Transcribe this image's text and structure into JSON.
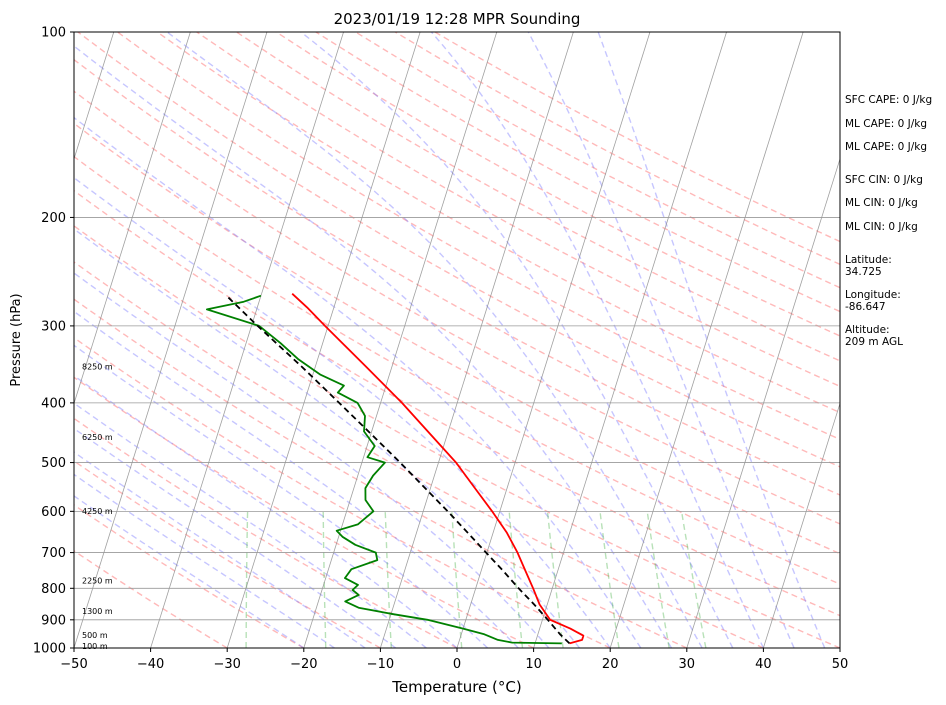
{
  "chart_data": {
    "type": "line",
    "subtype": "skew-t log-p sounding",
    "title": "2023/01/19 12:28 MPR Sounding",
    "xlabel": "Temperature (°C)",
    "ylabel": "Pressure (hPa)",
    "xlim": [
      -50,
      50
    ],
    "ylim": [
      1000,
      100
    ],
    "yscale": "log",
    "x_ticks": [
      -50,
      -40,
      -30,
      -20,
      -10,
      0,
      10,
      20,
      30,
      40,
      50
    ],
    "y_ticks": [
      100,
      200,
      300,
      400,
      500,
      600,
      700,
      800,
      900,
      1000
    ],
    "grid": "horizontal isobars on; skewed isotherms on",
    "background_lines": [
      "dry adiabats (red dashed)",
      "moist adiabats (blue dashed)",
      "mixing ratio lines (green dashed)"
    ],
    "series": [
      {
        "role": "temperature",
        "color": "#ff0000",
        "style": "solid",
        "points": [
          {
            "p": 983,
            "t": 14.5
          },
          {
            "p": 970,
            "t": 16.0
          },
          {
            "p": 955,
            "t": 16.0
          },
          {
            "p": 930,
            "t": 14.0
          },
          {
            "p": 900,
            "t": 11.0
          },
          {
            "p": 850,
            "t": 9.0
          },
          {
            "p": 800,
            "t": 7.5
          },
          {
            "p": 750,
            "t": 5.8
          },
          {
            "p": 700,
            "t": 4.0
          },
          {
            "p": 650,
            "t": 1.8
          },
          {
            "p": 600,
            "t": -1.0
          },
          {
            "p": 550,
            "t": -4.2
          },
          {
            "p": 500,
            "t": -7.7
          },
          {
            "p": 450,
            "t": -12.2
          },
          {
            "p": 400,
            "t": -17.2
          },
          {
            "p": 350,
            "t": -23.3
          },
          {
            "p": 300,
            "t": -30.4
          },
          {
            "p": 280,
            "t": -33.5
          },
          {
            "p": 266,
            "t": -36.0
          }
        ]
      },
      {
        "role": "dewpoint",
        "color": "#008000",
        "style": "solid",
        "points": [
          {
            "p": 983,
            "t": 13.5
          },
          {
            "p": 980,
            "t": 7.0
          },
          {
            "p": 970,
            "t": 5.0
          },
          {
            "p": 950,
            "t": 3.0
          },
          {
            "p": 930,
            "t": 0.0
          },
          {
            "p": 900,
            "t": -5.0
          },
          {
            "p": 880,
            "t": -10.0
          },
          {
            "p": 860,
            "t": -14.5
          },
          {
            "p": 840,
            "t": -16.5
          },
          {
            "p": 820,
            "t": -15.0
          },
          {
            "p": 805,
            "t": -16.0
          },
          {
            "p": 790,
            "t": -15.5
          },
          {
            "p": 770,
            "t": -17.5
          },
          {
            "p": 745,
            "t": -17.0
          },
          {
            "p": 720,
            "t": -14.0
          },
          {
            "p": 700,
            "t": -14.5
          },
          {
            "p": 680,
            "t": -17.5
          },
          {
            "p": 660,
            "t": -19.5
          },
          {
            "p": 645,
            "t": -20.5
          },
          {
            "p": 630,
            "t": -18.0
          },
          {
            "p": 600,
            "t": -16.5
          },
          {
            "p": 575,
            "t": -18.0
          },
          {
            "p": 550,
            "t": -18.5
          },
          {
            "p": 525,
            "t": -18.0
          },
          {
            "p": 500,
            "t": -17.0
          },
          {
            "p": 490,
            "t": -19.5
          },
          {
            "p": 470,
            "t": -19.0
          },
          {
            "p": 445,
            "t": -21.0
          },
          {
            "p": 420,
            "t": -21.5
          },
          {
            "p": 400,
            "t": -23.0
          },
          {
            "p": 385,
            "t": -26.0
          },
          {
            "p": 375,
            "t": -25.5
          },
          {
            "p": 360,
            "t": -29.0
          },
          {
            "p": 340,
            "t": -32.5
          },
          {
            "p": 320,
            "t": -35.5
          },
          {
            "p": 300,
            "t": -39.0
          },
          {
            "p": 282,
            "t": -46.5
          },
          {
            "p": 274,
            "t": -42.0
          },
          {
            "p": 268,
            "t": -40.0
          }
        ]
      },
      {
        "role": "parcel profile",
        "color": "#000000",
        "style": "dashed",
        "points": [
          {
            "p": 983,
            "t": 14.5
          },
          {
            "p": 950,
            "t": 12.9
          },
          {
            "p": 900,
            "t": 10.7
          },
          {
            "p": 850,
            "t": 8.3
          },
          {
            "p": 800,
            "t": 5.6
          },
          {
            "p": 750,
            "t": 2.9
          },
          {
            "p": 700,
            "t": -0.1
          },
          {
            "p": 650,
            "t": -3.3
          },
          {
            "p": 600,
            "t": -6.8
          },
          {
            "p": 550,
            "t": -10.7
          },
          {
            "p": 500,
            "t": -15.0
          },
          {
            "p": 450,
            "t": -19.9
          },
          {
            "p": 400,
            "t": -25.4
          },
          {
            "p": 350,
            "t": -31.7
          },
          {
            "p": 300,
            "t": -39.2
          },
          {
            "p": 268,
            "t": -44.5
          }
        ]
      }
    ],
    "height_labels": [
      {
        "label": "8250 m",
        "p": 350
      },
      {
        "label": "6250 m",
        "p": 455
      },
      {
        "label": "4250 m",
        "p": 600
      },
      {
        "label": "2250 m",
        "p": 778
      },
      {
        "label": "1300 m",
        "p": 872
      },
      {
        "label": "500 m",
        "p": 955
      },
      {
        "label": "100 m",
        "p": 995
      }
    ]
  },
  "stats": {
    "sfc_cape": "SFC CAPE: 0 J/kg",
    "ml_cape": "ML CAPE: 0 J/kg",
    "ml_cape_2": "ML CAPE: 0 J/kg",
    "sfc_cin": "SFC CIN: 0 J/kg",
    "ml_cin": "ML CIN: 0 J/kg",
    "ml_cin_2": "ML CIN: 0 J/kg",
    "latitude": "Latitude:\n34.725",
    "longitude": "Longitude:\n-86.647",
    "altitude": "Altitude:\n209 m AGL"
  }
}
